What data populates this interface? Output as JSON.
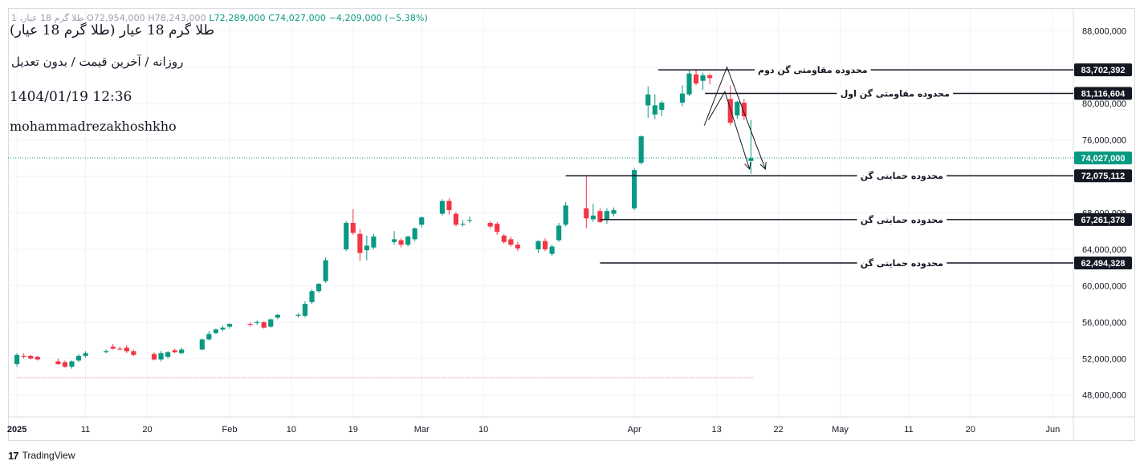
{
  "header": {
    "ohlc_prefix": "1 ،طلا گرم 18 عیار",
    "open": "O72,954,000",
    "high": "H78,243,000",
    "low": "L72,289,000",
    "close": "C74,027,000",
    "change": "−4,209,000 (−5.38%)"
  },
  "overlay": {
    "title": "طلا گرم 18 عیار (طلا گرم 18 عیار)",
    "subtitle": "روزانه / آخرین قیمت / بدون تعدیل",
    "datetime": "1404/01/19 12:36",
    "author": "mohammadrezakhoshkho"
  },
  "footer": {
    "brand": "TradingView",
    "logo_text": "17"
  },
  "colors": {
    "up": "#089981",
    "down": "#f23645",
    "line": "#131722",
    "last_price": "#089981",
    "grid": "#f0f3fa"
  },
  "chart_data": {
    "type": "candlestick",
    "y_axis": {
      "ticks": [
        48000000,
        52000000,
        56000000,
        60000000,
        64000000,
        68000000,
        72000000,
        76000000,
        80000000,
        84000000,
        88000000
      ],
      "labels": [
        "48,000,000",
        "52,000,000",
        "56,000,000",
        "60,000,000",
        "64,000,000",
        "68,000,000",
        "72,000,000",
        "76,000,000",
        "80,000,000",
        "84,000,000",
        "88,000,000"
      ],
      "range": [
        45600000,
        90400000
      ]
    },
    "x_axis": {
      "labels": [
        {
          "label": "2025",
          "day": 0,
          "bold": true
        },
        {
          "label": "11",
          "day": 10
        },
        {
          "label": "20",
          "day": 19
        },
        {
          "label": "Feb",
          "day": 31
        },
        {
          "label": "10",
          "day": 40
        },
        {
          "label": "19",
          "day": 49
        },
        {
          "label": "Mar",
          "day": 59
        },
        {
          "label": "10",
          "day": 68
        },
        {
          "label": "Apr",
          "day": 90
        },
        {
          "label": "13",
          "day": 102
        },
        {
          "label": "22",
          "day": 111
        },
        {
          "label": "May",
          "day": 120
        },
        {
          "label": "11",
          "day": 130
        },
        {
          "label": "20",
          "day": 139
        },
        {
          "label": "Jun",
          "day": 151
        }
      ],
      "range_days": [
        -1.3,
        154
      ]
    },
    "candles": [
      {
        "d": 0,
        "o": 51400000,
        "h": 52600000,
        "l": 51100000,
        "c": 52400000
      },
      {
        "d": 1,
        "o": 52300000,
        "h": 52600000,
        "l": 52000000,
        "c": 52200000
      },
      {
        "d": 2,
        "o": 52300000,
        "h": 52400000,
        "l": 51900000,
        "c": 52000000
      },
      {
        "d": 3,
        "o": 52200000,
        "h": 52300000,
        "l": 51800000,
        "c": 51900000
      },
      {
        "d": 6,
        "o": 51700000,
        "h": 52000000,
        "l": 51300000,
        "c": 51400000
      },
      {
        "d": 7,
        "o": 51600000,
        "h": 51800000,
        "l": 51000000,
        "c": 51100000
      },
      {
        "d": 8,
        "o": 51100000,
        "h": 51800000,
        "l": 50900000,
        "c": 51700000
      },
      {
        "d": 9,
        "o": 51800000,
        "h": 52500000,
        "l": 51600000,
        "c": 52300000
      },
      {
        "d": 10,
        "o": 52300000,
        "h": 52800000,
        "l": 52100000,
        "c": 52600000
      },
      {
        "d": 13,
        "o": 52700000,
        "h": 53000000,
        "l": 52600000,
        "c": 52800000
      },
      {
        "d": 14,
        "o": 53300000,
        "h": 53600000,
        "l": 53000000,
        "c": 53100000
      },
      {
        "d": 15,
        "o": 53100000,
        "h": 53300000,
        "l": 52900000,
        "c": 53000000
      },
      {
        "d": 16,
        "o": 53200000,
        "h": 53500000,
        "l": 52600000,
        "c": 52800000
      },
      {
        "d": 17,
        "o": 52800000,
        "h": 53000000,
        "l": 52300000,
        "c": 52400000
      },
      {
        "d": 20,
        "o": 52500000,
        "h": 52700000,
        "l": 51800000,
        "c": 51900000
      },
      {
        "d": 21,
        "o": 51900000,
        "h": 52800000,
        "l": 51700000,
        "c": 52600000
      },
      {
        "d": 22,
        "o": 52200000,
        "h": 52800000,
        "l": 52000000,
        "c": 52700000
      },
      {
        "d": 23,
        "o": 52900000,
        "h": 53100000,
        "l": 52600000,
        "c": 52700000
      },
      {
        "d": 24,
        "o": 52600000,
        "h": 53200000,
        "l": 52500000,
        "c": 53000000
      },
      {
        "d": 27,
        "o": 53000000,
        "h": 54200000,
        "l": 52900000,
        "c": 54100000
      },
      {
        "d": 28,
        "o": 54100000,
        "h": 55000000,
        "l": 54000000,
        "c": 54700000
      },
      {
        "d": 29,
        "o": 54800000,
        "h": 55300000,
        "l": 54700000,
        "c": 55200000
      },
      {
        "d": 30,
        "o": 55200000,
        "h": 55600000,
        "l": 55000000,
        "c": 55400000
      },
      {
        "d": 31,
        "o": 55500000,
        "h": 55900000,
        "l": 55300000,
        "c": 55800000
      },
      {
        "d": 34,
        "o": 55800000,
        "h": 56000000,
        "l": 55500000,
        "c": 55700000
      },
      {
        "d": 35,
        "o": 55900000,
        "h": 56200000,
        "l": 55700000,
        "c": 56000000
      },
      {
        "d": 36,
        "o": 56000000,
        "h": 56100000,
        "l": 55300000,
        "c": 55400000
      },
      {
        "d": 37,
        "o": 55500000,
        "h": 56400000,
        "l": 55400000,
        "c": 56300000
      },
      {
        "d": 38,
        "o": 56500000,
        "h": 56900000,
        "l": 56300000,
        "c": 56800000
      },
      {
        "d": 41,
        "o": 56700000,
        "h": 57000000,
        "l": 56500000,
        "c": 56800000
      },
      {
        "d": 42,
        "o": 56700000,
        "h": 58300000,
        "l": 56500000,
        "c": 58000000
      },
      {
        "d": 43,
        "o": 58200000,
        "h": 59600000,
        "l": 58000000,
        "c": 59400000
      },
      {
        "d": 44,
        "o": 59400000,
        "h": 60300000,
        "l": 59200000,
        "c": 60200000
      },
      {
        "d": 45,
        "o": 60500000,
        "h": 63100000,
        "l": 60300000,
        "c": 62800000
      },
      {
        "d": 48,
        "o": 64000000,
        "h": 67100000,
        "l": 63800000,
        "c": 66900000
      },
      {
        "d": 49,
        "o": 66900000,
        "h": 68400000,
        "l": 65600000,
        "c": 65800000
      },
      {
        "d": 50,
        "o": 65700000,
        "h": 66200000,
        "l": 62700000,
        "c": 63600000
      },
      {
        "d": 51,
        "o": 63900000,
        "h": 65500000,
        "l": 62800000,
        "c": 64400000
      },
      {
        "d": 52,
        "o": 64200000,
        "h": 65700000,
        "l": 64000000,
        "c": 65400000
      },
      {
        "d": 55,
        "o": 64800000,
        "h": 66000000,
        "l": 64500000,
        "c": 65100000
      },
      {
        "d": 56,
        "o": 65000000,
        "h": 65200000,
        "l": 64200000,
        "c": 64500000
      },
      {
        "d": 57,
        "o": 64500000,
        "h": 65500000,
        "l": 64300000,
        "c": 65400000
      },
      {
        "d": 58,
        "o": 65100000,
        "h": 66400000,
        "l": 64900000,
        "c": 66300000
      },
      {
        "d": 59,
        "o": 66700000,
        "h": 67600000,
        "l": 66400000,
        "c": 67500000
      },
      {
        "d": 62,
        "o": 67900000,
        "h": 69500000,
        "l": 67700000,
        "c": 69300000
      },
      {
        "d": 63,
        "o": 69300000,
        "h": 69600000,
        "l": 67800000,
        "c": 68300000
      },
      {
        "d": 64,
        "o": 67900000,
        "h": 68100000,
        "l": 66500000,
        "c": 66700000
      },
      {
        "d": 65,
        "o": 66700000,
        "h": 67200000,
        "l": 66500000,
        "c": 66800000
      },
      {
        "d": 66,
        "o": 67200000,
        "h": 67600000,
        "l": 66900000,
        "c": 67200000
      },
      {
        "d": 69,
        "o": 66900000,
        "h": 67100000,
        "l": 66300000,
        "c": 66500000
      },
      {
        "d": 70,
        "o": 66800000,
        "h": 67000000,
        "l": 65600000,
        "c": 65900000
      },
      {
        "d": 71,
        "o": 65500000,
        "h": 65700000,
        "l": 64600000,
        "c": 64800000
      },
      {
        "d": 72,
        "o": 65100000,
        "h": 65400000,
        "l": 64300000,
        "c": 64500000
      },
      {
        "d": 73,
        "o": 64500000,
        "h": 64800000,
        "l": 63800000,
        "c": 64100000
      },
      {
        "d": 76,
        "o": 64000000,
        "h": 65000000,
        "l": 63600000,
        "c": 64900000
      },
      {
        "d": 77,
        "o": 64900000,
        "h": 65200000,
        "l": 63800000,
        "c": 64000000
      },
      {
        "d": 78,
        "o": 63500000,
        "h": 64500000,
        "l": 63300000,
        "c": 64300000
      },
      {
        "d": 79,
        "o": 65000000,
        "h": 66900000,
        "l": 64800000,
        "c": 66600000
      },
      {
        "d": 80,
        "o": 66700000,
        "h": 69200000,
        "l": 66500000,
        "c": 68800000
      },
      {
        "d": 83,
        "o": 68500000,
        "h": 72100000,
        "l": 66300000,
        "c": 67400000
      },
      {
        "d": 84,
        "o": 67300000,
        "h": 69000000,
        "l": 67000000,
        "c": 67700000
      },
      {
        "d": 85,
        "o": 68200000,
        "h": 68500000,
        "l": 66900000,
        "c": 67000000
      },
      {
        "d": 86,
        "o": 67200000,
        "h": 68500000,
        "l": 66800000,
        "c": 68200000
      },
      {
        "d": 87,
        "o": 67900000,
        "h": 68600000,
        "l": 67600000,
        "c": 68300000
      },
      {
        "d": 90,
        "o": 68500000,
        "h": 72900000,
        "l": 68300000,
        "c": 72700000
      },
      {
        "d": 91,
        "o": 73500000,
        "h": 76500000,
        "l": 73300000,
        "c": 76400000
      },
      {
        "d": 92,
        "o": 79800000,
        "h": 81900000,
        "l": 78400000,
        "c": 81000000
      },
      {
        "d": 93,
        "o": 78800000,
        "h": 81000000,
        "l": 78300000,
        "c": 79800000
      },
      {
        "d": 94,
        "o": 79300000,
        "h": 80300000,
        "l": 78600000,
        "c": 80100000
      },
      {
        "d": 97,
        "o": 80100000,
        "h": 82000000,
        "l": 79700000,
        "c": 81100000
      },
      {
        "d": 98,
        "o": 81000000,
        "h": 83700000,
        "l": 80800000,
        "c": 83300000
      },
      {
        "d": 99,
        "o": 83200000,
        "h": 83700000,
        "l": 82000000,
        "c": 82200000
      },
      {
        "d": 100,
        "o": 82500000,
        "h": 83400000,
        "l": 81500000,
        "c": 83100000
      },
      {
        "d": 101,
        "o": 83100000,
        "h": 83300000,
        "l": 82100000,
        "c": 82800000
      },
      {
        "d": 104,
        "o": 80500000,
        "h": 82000000,
        "l": 77600000,
        "c": 77900000
      },
      {
        "d": 105,
        "o": 78700000,
        "h": 80300000,
        "l": 78300000,
        "c": 80200000
      },
      {
        "d": 106,
        "o": 80100000,
        "h": 80500000,
        "l": 78200000,
        "c": 78600000
      },
      {
        "d": 107,
        "o": 73700000,
        "h": 78200000,
        "l": 72300000,
        "c": 74000000
      }
    ],
    "lines": [
      {
        "price": 83702392,
        "label": "83,702,392",
        "text": "محدوده مقاومتی گن دوم",
        "start_day": 93.5,
        "text_day": 116
      },
      {
        "price": 81116604,
        "label": "81,116,604",
        "text": "محدوده مقاومتی گن اول",
        "start_day": 100.3,
        "text_day": 128
      },
      {
        "price": 72075112,
        "label": "72,075,112",
        "text": "محدوده حمایتی گن",
        "start_day": 80,
        "text_day": 129
      },
      {
        "price": 67261378,
        "label": "67,261,378",
        "text": "محدوده حمایتی گن",
        "start_day": 85,
        "text_day": 129
      },
      {
        "price": 62494328,
        "label": "62,494,328",
        "text": "محدوده حمایتی گن",
        "start_day": 85,
        "text_day": 129
      }
    ],
    "last_price": {
      "price": 74027000,
      "label": "74,027,000"
    },
    "arrows": [
      {
        "from_day": 100.2,
        "from": 77600000,
        "peak_day": 103.5,
        "peak": 84000000,
        "to_day": 109.1,
        "to": 72800000
      },
      {
        "from_day": 100.8,
        "from": 78200000,
        "peak_day": 103.2,
        "peak": 81300000,
        "to_day": 106.8,
        "to": 72800000
      }
    ],
    "volume_baseline": {
      "from_day": 0,
      "to_day": 107.4,
      "price": 49900000
    }
  }
}
